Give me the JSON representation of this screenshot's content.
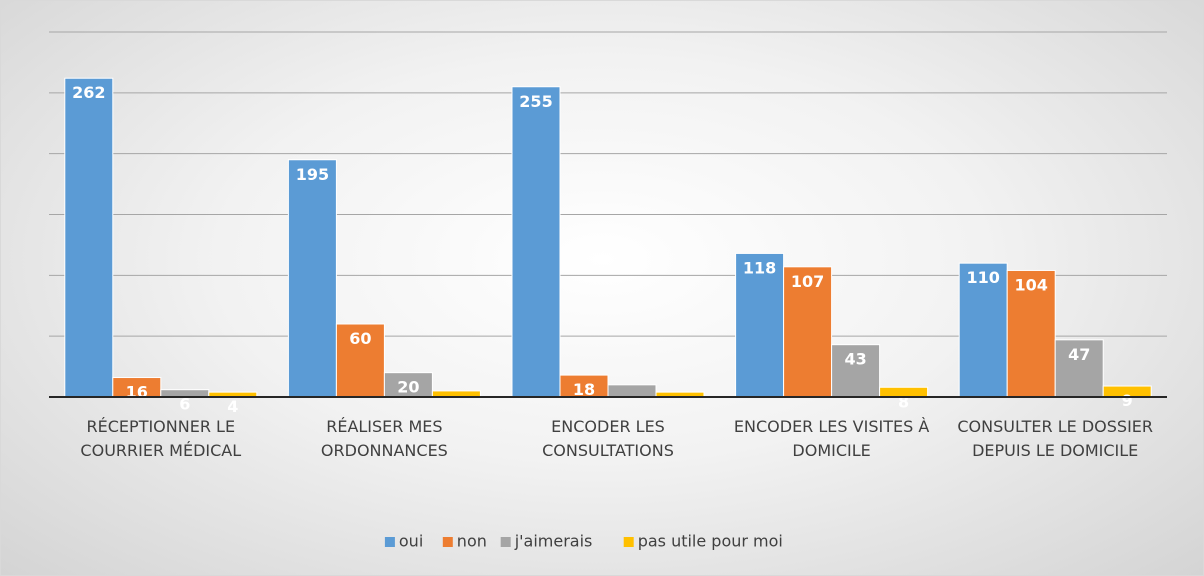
{
  "chart_data": {
    "type": "bar",
    "categories": [
      "RÉCEPTIONNER LE COURRIER MÉDICAL",
      "RÉALISER MES ORDONNANCES",
      "ENCODER LES CONSULTATIONS",
      "ENCODER LES VISITES À DOMICILE",
      "CONSULTER LE DOSSIER DEPUIS LE DOMICILE"
    ],
    "series": [
      {
        "name": "oui",
        "color": "#5b9bd5",
        "values": [
          262,
          195,
          255,
          118,
          110
        ]
      },
      {
        "name": "non",
        "color": "#ed7d31",
        "values": [
          16,
          60,
          18,
          107,
          104
        ]
      },
      {
        "name": "j'aimerais",
        "color": "#a5a5a5",
        "values": [
          6,
          20,
          10,
          43,
          47
        ],
        "value_labels": [
          "6",
          "20",
          null,
          "43",
          "47"
        ]
      },
      {
        "name": "pas utile pour moi",
        "color": "#ffc000",
        "values": [
          4,
          5,
          4,
          8,
          9
        ],
        "value_labels": [
          "4",
          null,
          null,
          "8",
          "9"
        ]
      }
    ],
    "ylim": [
      0,
      300
    ],
    "yticks": [
      0,
      50,
      100,
      150,
      200,
      250,
      300
    ],
    "grid": true,
    "legend": "bottom"
  }
}
